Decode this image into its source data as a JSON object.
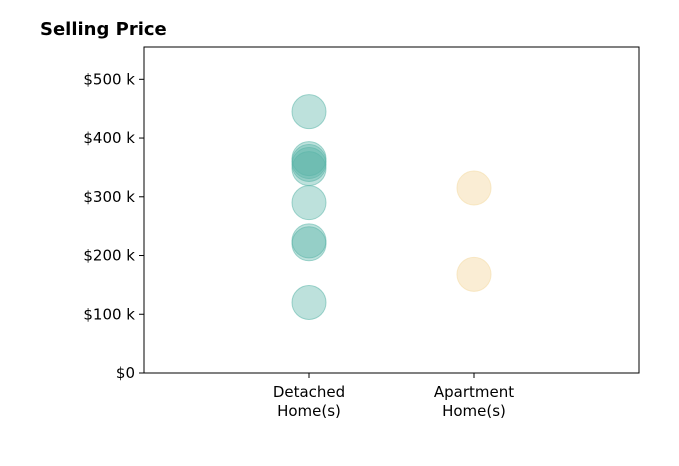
{
  "chart_data": {
    "type": "scatter",
    "title": "Selling Price",
    "xlabel": "",
    "ylabel": "",
    "categories": [
      "Detached\nHome(s)",
      "Apartment\nHome(s)"
    ],
    "y_ticks": [
      {
        "value": 0,
        "label": "$0"
      },
      {
        "value": 100000,
        "label": "$100 k"
      },
      {
        "value": 200000,
        "label": "$200 k"
      },
      {
        "value": 300000,
        "label": "$300 k"
      },
      {
        "value": 400000,
        "label": "$400 k"
      },
      {
        "value": 500000,
        "label": "$500 k"
      }
    ],
    "ylim": [
      0,
      555000
    ],
    "xlim": [
      -1,
      2
    ],
    "grid": false,
    "legend": "none",
    "series": [
      {
        "category_index": 0,
        "color": "#5AB4A8",
        "opacity": 0.4,
        "values": [
          445000,
          365000,
          360000,
          355000,
          348000,
          290000,
          225000,
          220000,
          120000
        ]
      },
      {
        "category_index": 1,
        "color": "#F5DFB0",
        "opacity": 0.55,
        "values": [
          315000,
          168000
        ]
      }
    ]
  }
}
